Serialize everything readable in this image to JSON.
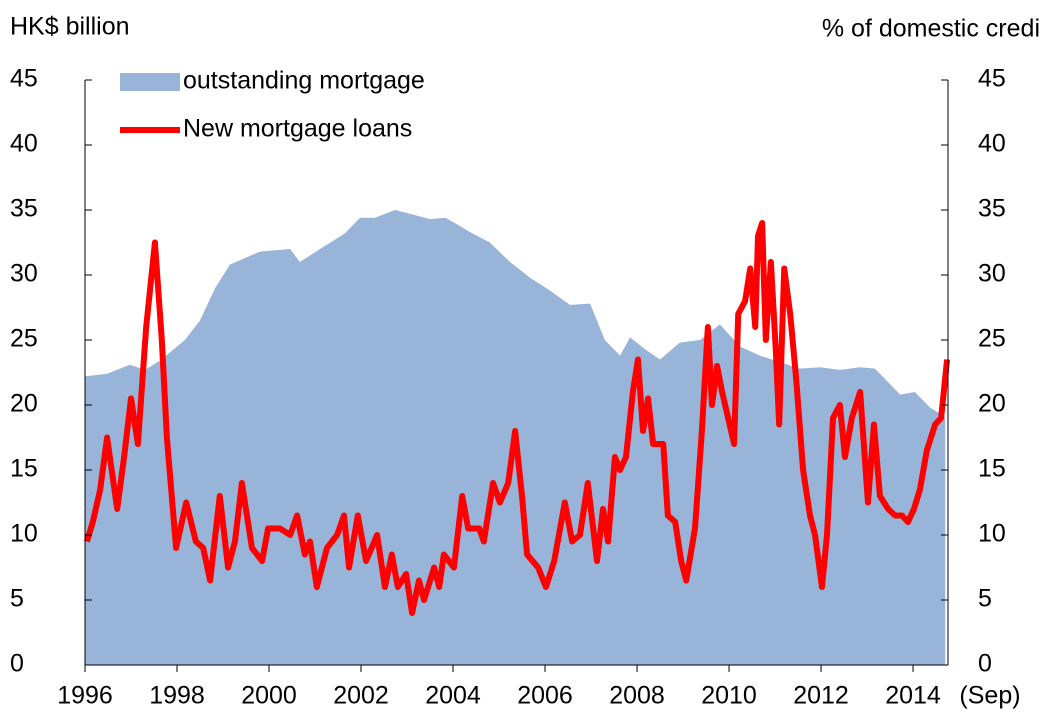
{
  "chart_data": {
    "type": "area-line",
    "y_label": "HK$ billion",
    "y2_label": "% of domestic credi",
    "x_annotation": "(Sep)",
    "xlim": [
      1996,
      2014.76
    ],
    "xticks": [
      1996,
      1998,
      2000,
      2002,
      2004,
      2006,
      2008,
      2010,
      2012,
      2014
    ],
    "ylim": [
      0,
      45
    ],
    "yticks": [
      0,
      5,
      10,
      15,
      20,
      25,
      30,
      35,
      40,
      45
    ],
    "y2lim": [
      0,
      45
    ],
    "y2ticks": [
      0,
      5,
      10,
      15,
      20,
      25,
      30,
      35,
      40,
      45
    ],
    "series": [
      {
        "name": "outstanding mortgage",
        "kind": "area",
        "axis": "y2",
        "color": "#98b4d8",
        "x": [
          1996.0,
          1996.48,
          1996.98,
          1997.3,
          1997.63,
          1998.17,
          1998.5,
          1998.83,
          1999.15,
          1999.8,
          2000.46,
          2000.67,
          2001.11,
          2001.65,
          2001.98,
          2002.3,
          2002.74,
          2003.07,
          2003.5,
          2003.83,
          2004.04,
          2004.37,
          2004.8,
          2005.24,
          2005.67,
          2006.11,
          2006.54,
          2006.98,
          2007.3,
          2007.63,
          2007.85,
          2008.17,
          2008.5,
          2008.93,
          2009.37,
          2009.8,
          2010.24,
          2010.67,
          2011.11,
          2011.54,
          2011.98,
          2012.41,
          2012.85,
          2013.17,
          2013.39,
          2013.72,
          2014.04,
          2014.37,
          2014.7
        ],
        "values": [
          22.2,
          22.4,
          23.1,
          22.7,
          23.4,
          25,
          26.5,
          29,
          30.8,
          31.8,
          32,
          31,
          32,
          33.2,
          34.4,
          34.4,
          35,
          34.7,
          34.3,
          34.4,
          34,
          33.3,
          32.5,
          31,
          29.8,
          28.8,
          27.7,
          27.8,
          25,
          23.8,
          25.2,
          24.3,
          23.5,
          24.8,
          25,
          26.2,
          24.5,
          23.8,
          23.3,
          22.8,
          22.9,
          22.7,
          22.9,
          22.8,
          22,
          20.8,
          21,
          19.8,
          19.1
        ]
      },
      {
        "name": "New mortgage loans",
        "kind": "line",
        "axis": "y",
        "color": "#ff0000",
        "x": [
          1996.04,
          1996.17,
          1996.33,
          1996.48,
          1996.7,
          1996.85,
          1997.0,
          1997.15,
          1997.33,
          1997.52,
          1997.67,
          1997.78,
          1997.98,
          1998.2,
          1998.41,
          1998.57,
          1998.72,
          1998.93,
          1999.11,
          1999.26,
          1999.41,
          1999.63,
          1999.85,
          1999.98,
          2000.24,
          2000.46,
          2000.61,
          2000.78,
          2000.89,
          2001.04,
          2001.26,
          2001.48,
          2001.63,
          2001.74,
          2001.93,
          2002.11,
          2002.35,
          2002.52,
          2002.67,
          2002.8,
          2002.98,
          2003.11,
          2003.26,
          2003.37,
          2003.59,
          2003.7,
          2003.8,
          2004.02,
          2004.2,
          2004.33,
          2004.57,
          2004.67,
          2004.87,
          2005.02,
          2005.2,
          2005.35,
          2005.5,
          2005.61,
          2005.85,
          2006.02,
          2006.2,
          2006.43,
          2006.59,
          2006.76,
          2006.93,
          2007.13,
          2007.26,
          2007.37,
          2007.52,
          2007.63,
          2007.76,
          2007.91,
          2008.02,
          2008.13,
          2008.24,
          2008.35,
          2008.57,
          2008.67,
          2008.83,
          2008.96,
          2009.07,
          2009.26,
          2009.41,
          2009.54,
          2009.63,
          2009.74,
          2009.85,
          2009.98,
          2010.11,
          2010.2,
          2010.35,
          2010.46,
          2010.57,
          2010.63,
          2010.72,
          2010.8,
          2010.91,
          2011.02,
          2011.09,
          2011.2,
          2011.33,
          2011.46,
          2011.61,
          2011.76,
          2011.87,
          2012.02,
          2012.13,
          2012.26,
          2012.41,
          2012.52,
          2012.67,
          2012.85,
          2013.02,
          2013.15,
          2013.28,
          2013.46,
          2013.61,
          2013.76,
          2013.89,
          2014.02,
          2014.15,
          2014.3,
          2014.48,
          2014.61,
          2014.74
        ],
        "values": [
          9.5,
          11,
          13.5,
          17.5,
          12,
          16,
          20.5,
          17,
          26,
          32.5,
          25,
          17.5,
          9,
          12.5,
          9.5,
          9,
          6.5,
          13,
          7.5,
          9.5,
          14,
          9,
          8,
          10.5,
          10.5,
          10,
          11.5,
          8.5,
          9.5,
          6,
          9,
          10,
          11.5,
          7.5,
          11.5,
          8,
          10,
          6,
          8.5,
          6,
          7,
          4,
          6.5,
          5,
          7.5,
          6,
          8.5,
          7.5,
          13,
          10.5,
          10.5,
          9.5,
          14,
          12.5,
          14,
          18,
          13,
          8.5,
          7.5,
          6,
          8,
          12.5,
          9.5,
          10,
          14,
          8,
          12,
          9.5,
          16,
          15,
          16,
          21,
          23.5,
          18,
          20.5,
          17,
          17,
          11.5,
          11,
          8,
          6.5,
          10.5,
          18,
          26,
          20,
          23,
          21,
          19,
          17,
          27,
          28,
          30.5,
          26,
          33,
          34,
          25,
          31,
          24,
          18.5,
          30.5,
          27,
          22,
          15,
          11.5,
          10,
          6,
          10,
          19,
          20,
          16,
          19,
          21,
          12.5,
          18.5,
          13,
          12,
          11.5,
          11.5,
          11,
          12,
          13.5,
          16.5,
          18.5,
          19,
          23.5
        ]
      }
    ]
  }
}
